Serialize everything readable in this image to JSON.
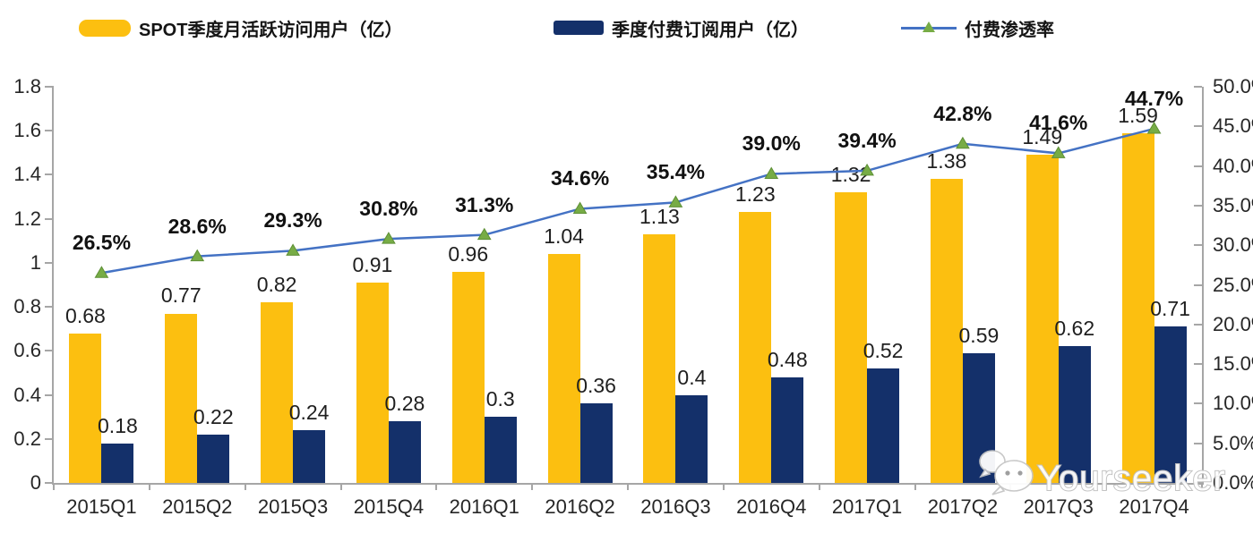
{
  "legend": [
    {
      "label": "SPOT季度月活跃访问用户（亿）",
      "color": "#FCBF10"
    },
    {
      "label": "季度付费订阅用户（亿）",
      "color": "#14306A"
    },
    {
      "label": "付费渗透率",
      "color": "#4472C4",
      "marker_color": "#77AC46"
    }
  ],
  "watermark": {
    "text": "Yourseeker",
    "icon": "wechat-icon"
  },
  "chart_data": {
    "type": "bar",
    "subtype": "grouped bars with secondary-axis line",
    "categories": [
      "2015Q1",
      "2015Q2",
      "2015Q3",
      "2015Q4",
      "2016Q1",
      "2016Q2",
      "2016Q3",
      "2016Q4",
      "2017Q1",
      "2017Q2",
      "2017Q3",
      "2017Q4"
    ],
    "series": [
      {
        "name": "SPOT季度月活跃访问用户（亿）",
        "type": "bar",
        "axis": "left",
        "color": "#FCBF10",
        "values": [
          0.68,
          0.77,
          0.82,
          0.91,
          0.96,
          1.04,
          1.13,
          1.23,
          1.32,
          1.38,
          1.49,
          1.59
        ],
        "labels": [
          "0.68",
          "0.77",
          "0.82",
          "0.91",
          "0.96",
          "1.04",
          "1.13",
          "1.23",
          "1.32",
          "1.38",
          "1.49",
          "1.59"
        ]
      },
      {
        "name": "季度付费订阅用户（亿）",
        "type": "bar",
        "axis": "left",
        "color": "#14306A",
        "values": [
          0.18,
          0.22,
          0.24,
          0.28,
          0.3,
          0.36,
          0.4,
          0.48,
          0.52,
          0.59,
          0.62,
          0.71
        ],
        "labels": [
          "0.18",
          "0.22",
          "0.24",
          "0.28",
          "0.3",
          "0.36",
          "0.4",
          "0.48",
          "0.52",
          "0.59",
          "0.62",
          "0.71"
        ]
      },
      {
        "name": "付费渗透率",
        "type": "line",
        "axis": "right",
        "color": "#4472C4",
        "marker": "triangle",
        "marker_color": "#77AC46",
        "values": [
          26.5,
          28.6,
          29.3,
          30.8,
          31.3,
          34.6,
          35.4,
          39.0,
          39.4,
          42.8,
          41.6,
          44.7
        ],
        "labels": [
          "26.5%",
          "28.6%",
          "29.3%",
          "30.8%",
          "31.3%",
          "34.6%",
          "35.4%",
          "39.0%",
          "39.4%",
          "42.8%",
          "41.6%",
          "44.7%"
        ]
      }
    ],
    "left_axis": {
      "min": 0,
      "max": 1.8,
      "step": 0.2,
      "ticks": [
        "0",
        "0.2",
        "0.4",
        "0.6",
        "0.8",
        "1",
        "1.2",
        "1.4",
        "1.6",
        "1.8"
      ]
    },
    "right_axis": {
      "min": 0,
      "max": 50,
      "step": 5,
      "ticks": [
        "0.0%",
        "5.0%",
        "10.0%",
        "15.0%",
        "20.0%",
        "25.0%",
        "30.0%",
        "35.0%",
        "40.0%",
        "45.0%",
        "50.0%"
      ]
    },
    "grid": false,
    "legend_position": "top",
    "title": ""
  }
}
